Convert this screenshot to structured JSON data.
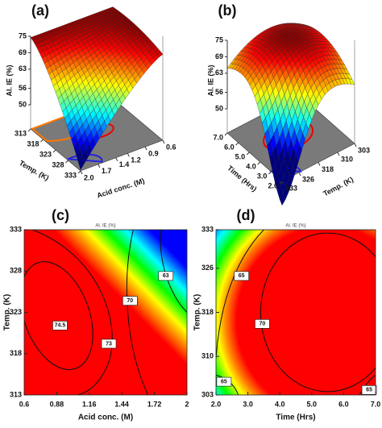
{
  "chart_data": [
    {
      "type": "surface3d",
      "panel": "(a)",
      "zlabel": "Al. IE (%)",
      "zlim": [
        50,
        75
      ],
      "zticks": [
        50,
        56,
        63,
        69,
        75
      ],
      "xlabel": "Acid conc. (M)",
      "xlim": [
        0.6,
        2
      ],
      "xticks": [
        0.6,
        0.9,
        1.2,
        1.4,
        1.7,
        {
          "value": 2,
          "label": "2.0"
        }
      ],
      "ylabel": "Temp. (K)",
      "ylim": [
        313,
        333
      ],
      "yticks": [
        313,
        318,
        323,
        328,
        333
      ]
    },
    {
      "type": "surface3d",
      "panel": "(b)",
      "zlabel": "Al. IE (%)",
      "zlim": [
        50,
        75
      ],
      "zticks": [
        50,
        56,
        63,
        69,
        75
      ],
      "xlabel": "Temp. (K)",
      "xlim": [
        303,
        333
      ],
      "xticks": [
        303,
        310,
        318,
        326,
        333
      ],
      "ylabel": "Time (Hrs)",
      "ylim": [
        2,
        7
      ],
      "yticks": [
        {
          "value": 2,
          "label": "2.0"
        },
        {
          "value": 3,
          "label": "3.0"
        },
        {
          "value": 4,
          "label": "4.0"
        },
        {
          "value": 5,
          "label": "5.0"
        },
        {
          "value": 6,
          "label": "6.0"
        },
        {
          "value": 7,
          "label": "7.0"
        }
      ]
    },
    {
      "type": "contour",
      "panel": "(c)",
      "title": "Al. IE (%)",
      "xlabel": "Acid conc. (M)",
      "xlim": [
        0.6,
        2
      ],
      "xticks": [
        0.6,
        0.88,
        1.16,
        1.44,
        1.72,
        2
      ],
      "ylabel": "Temp. (K)",
      "ylim": [
        313,
        333
      ],
      "yticks": [
        313,
        318,
        323,
        328,
        333
      ],
      "levels": [
        74.5,
        73,
        70,
        63
      ]
    },
    {
      "type": "contour",
      "panel": "(d)",
      "title": "Al. IE (%)",
      "xlabel": "Time (Hrs)",
      "xlim": [
        2,
        7
      ],
      "xticks": [
        {
          "value": 2,
          "label": "2.0"
        },
        {
          "value": 3,
          "label": "3.0"
        },
        {
          "value": 4,
          "label": "4.0"
        },
        {
          "value": 5,
          "label": "5.0"
        },
        {
          "value": 6,
          "label": "6.0"
        },
        {
          "value": 7,
          "label": "7.0"
        }
      ],
      "ylabel": "Temp. (K)",
      "ylim": [
        303,
        333
      ],
      "yticks": [
        303,
        310,
        318,
        326,
        333
      ],
      "levels": [
        65,
        70,
        65,
        65
      ]
    }
  ]
}
